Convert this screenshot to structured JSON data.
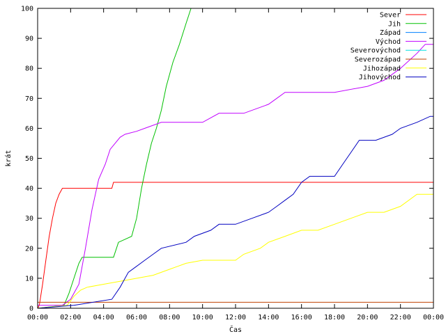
{
  "chart_data": {
    "type": "line",
    "title": "",
    "xlabel": "Čas",
    "ylabel": "krát",
    "xlim": [
      0,
      24
    ],
    "ylim": [
      0,
      100
    ],
    "x_ticks": [
      0,
      2,
      4,
      6,
      8,
      10,
      12,
      14,
      16,
      18,
      20,
      22,
      24
    ],
    "x_tick_labels": [
      "00:00",
      "02:00",
      "04:00",
      "06:00",
      "08:00",
      "10:00",
      "12:00",
      "14:00",
      "16:00",
      "18:00",
      "20:00",
      "22:00",
      "00:00"
    ],
    "y_ticks": [
      0,
      10,
      20,
      30,
      40,
      50,
      60,
      70,
      80,
      90,
      100
    ],
    "y_tick_labels": [
      "0",
      "10",
      "20",
      "30",
      "40",
      "50",
      "60",
      "70",
      "80",
      "90",
      "100"
    ],
    "grid": false,
    "legend_position": "top-right",
    "series": [
      {
        "name": "Sever",
        "color": "#ff0000",
        "x": [
          0,
          0.1,
          0.3,
          0.5,
          0.7,
          0.9,
          1.1,
          1.3,
          1.5,
          4.5,
          4.6,
          24
        ],
        "y": [
          0,
          1,
          8,
          16,
          24,
          30,
          35,
          38,
          40,
          40,
          42,
          42
        ]
      },
      {
        "name": "Jih",
        "color": "#00c000",
        "x": [
          0,
          1.6,
          1.9,
          2.2,
          2.5,
          2.7,
          3,
          4.6,
          4.9,
          5.3,
          5.7,
          6.0,
          6.3,
          6.6,
          6.9,
          7.2,
          7.5,
          7.8,
          8.2,
          8.6,
          9.0,
          9.3
        ],
        "y": [
          0,
          1,
          5,
          10,
          15,
          17,
          17,
          17,
          22,
          23,
          24,
          30,
          40,
          48,
          55,
          60,
          66,
          74,
          82,
          88,
          95,
          100
        ]
      },
      {
        "name": "Západ",
        "color": "#0080ff",
        "x": [],
        "y": []
      },
      {
        "name": "Východ",
        "color": "#c000ff",
        "x": [
          0,
          1.5,
          2.0,
          2.5,
          2.9,
          3.3,
          3.7,
          4.1,
          4.4,
          4.7,
          5.0,
          5.3,
          6.0,
          6.5,
          7.5,
          10.0,
          11.0,
          12.5,
          14.0,
          14.5,
          15.0,
          18.0,
          20.0,
          21.0,
          22.0,
          23.0,
          23.5,
          24.0
        ],
        "y": [
          1,
          1,
          3,
          8,
          20,
          33,
          43,
          48,
          53,
          55,
          57,
          58,
          59,
          60,
          62,
          62,
          65,
          65,
          68,
          70,
          72,
          72,
          74,
          76,
          80,
          85,
          88,
          88
        ]
      },
      {
        "name": "Severovýchod",
        "color": "#00e0e0",
        "x": [],
        "y": []
      },
      {
        "name": "Severozápad",
        "color": "#c04000",
        "x": [
          0,
          24
        ],
        "y": [
          2,
          2
        ]
      },
      {
        "name": "Jihozápad",
        "color": "#ffff00",
        "x": [
          0,
          1.8,
          2.2,
          2.6,
          3.0,
          4.0,
          5.0,
          7.0,
          8.0,
          9.0,
          10.0,
          11.0,
          12.0,
          12.5,
          13.5,
          14.0,
          15.0,
          16.0,
          17.0,
          18.0,
          19.0,
          20.0,
          21.0,
          22.0,
          23.0,
          24.0
        ],
        "y": [
          0,
          1,
          4,
          6,
          7,
          8,
          9,
          11,
          13,
          15,
          16,
          16,
          16,
          18,
          20,
          22,
          24,
          26,
          26,
          28,
          30,
          32,
          32,
          34,
          38,
          38
        ]
      },
      {
        "name": "Jihovýchod",
        "color": "#0000c0",
        "x": [
          0,
          2.2,
          4.5,
          5.0,
          5.5,
          6.0,
          6.5,
          7.0,
          7.5,
          9.0,
          9.5,
          10.5,
          11.0,
          12.0,
          13.0,
          14.0,
          14.5,
          15.0,
          15.5,
          16.0,
          16.5,
          17.0,
          18.0,
          18.5,
          19.0,
          19.5,
          20.5,
          21.5,
          22.0,
          23.0,
          23.8,
          24.0
        ],
        "y": [
          0,
          1,
          3,
          7,
          12,
          14,
          16,
          18,
          20,
          22,
          24,
          26,
          28,
          28,
          30,
          32,
          34,
          36,
          38,
          42,
          44,
          44,
          44,
          48,
          52,
          56,
          56,
          58,
          60,
          62,
          64,
          64
        ]
      }
    ]
  }
}
